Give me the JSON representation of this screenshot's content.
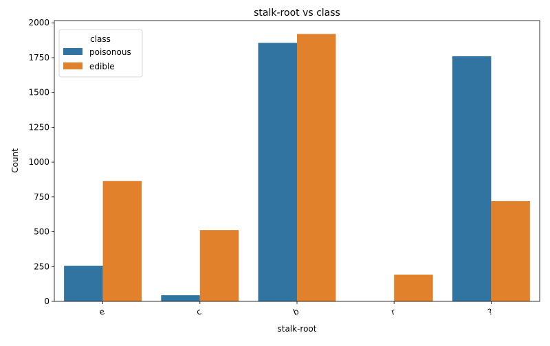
{
  "chart_data": {
    "type": "bar",
    "title": "stalk-root vs class",
    "xlabel": "stalk-root",
    "ylabel": "Count",
    "categories": [
      "e",
      "c",
      "b",
      "r",
      "?"
    ],
    "series": [
      {
        "name": "poisonous",
        "color": "#3274a1",
        "values": [
          256,
          44,
          1856,
          0,
          1760
        ]
      },
      {
        "name": "edible",
        "color": "#e1812c",
        "values": [
          864,
          512,
          1920,
          192,
          720
        ]
      }
    ],
    "ylim": [
      0,
      2016
    ],
    "yticks": [
      0,
      250,
      500,
      750,
      1000,
      1250,
      1500,
      1750,
      2000
    ],
    "legend": {
      "title": "class",
      "placement": "top-left"
    },
    "grid": false
  }
}
